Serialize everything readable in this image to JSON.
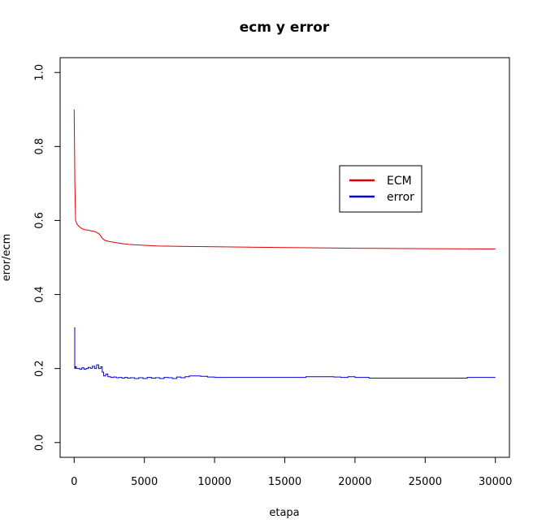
{
  "chart_data": {
    "type": "line",
    "title": "ecm y error",
    "xlabel": "etapa",
    "ylabel": "eror/ecm",
    "xlim": [
      -1000,
      31000
    ],
    "ylim": [
      -0.04,
      1.04
    ],
    "x_ticks": [
      {
        "value": 0,
        "label": "0"
      },
      {
        "value": 5000,
        "label": "5000"
      },
      {
        "value": 10000,
        "label": "10000"
      },
      {
        "value": 15000,
        "label": "15000"
      },
      {
        "value": 20000,
        "label": "20000"
      },
      {
        "value": 25000,
        "label": "25000"
      },
      {
        "value": 30000,
        "label": "30000"
      }
    ],
    "y_ticks": [
      {
        "value": 0.0,
        "label": "0.0"
      },
      {
        "value": 0.2,
        "label": "0.2"
      },
      {
        "value": 0.4,
        "label": "0.4"
      },
      {
        "value": 0.6,
        "label": "0.6"
      },
      {
        "value": 0.8,
        "label": "0.8"
      },
      {
        "value": 1.0,
        "label": "1.0"
      }
    ],
    "grid": false,
    "legend_position": "top-right",
    "series": [
      {
        "name": "ECM",
        "color": "#e00000",
        "x": [
          0,
          50,
          100,
          200,
          400,
          600,
          800,
          1000,
          1200,
          1400,
          1600,
          1800,
          2000,
          2200,
          2500,
          3000,
          3500,
          4000,
          5000,
          6000,
          8000,
          10000,
          15000,
          20000,
          25000,
          30000
        ],
        "y": [
          0.9,
          0.7,
          0.6,
          0.59,
          0.582,
          0.577,
          0.575,
          0.574,
          0.572,
          0.571,
          0.568,
          0.563,
          0.552,
          0.546,
          0.543,
          0.54,
          0.537,
          0.535,
          0.533,
          0.531,
          0.53,
          0.529,
          0.527,
          0.525,
          0.524,
          0.523
        ]
      },
      {
        "name": "error",
        "color": "#0000e0",
        "x": [
          0,
          40,
          80,
          150,
          250,
          400,
          550,
          700,
          850,
          1000,
          1150,
          1300,
          1450,
          1600,
          1750,
          1900,
          2000,
          2100,
          2250,
          2400,
          2600,
          2800,
          3000,
          3200,
          3400,
          3600,
          3800,
          4000,
          4300,
          4600,
          4900,
          5200,
          5500,
          5800,
          6100,
          6400,
          6700,
          7000,
          7300,
          7600,
          7900,
          8200,
          8600,
          9000,
          9500,
          10000,
          12000,
          14000,
          16000,
          16500,
          18000,
          18500,
          19000,
          19500,
          20000,
          21000,
          23000,
          25000,
          27000,
          28000,
          30000
        ],
        "y": [
          0.31,
          0.2,
          0.205,
          0.2,
          0.2,
          0.198,
          0.202,
          0.198,
          0.2,
          0.203,
          0.201,
          0.206,
          0.2,
          0.21,
          0.2,
          0.205,
          0.19,
          0.18,
          0.185,
          0.178,
          0.176,
          0.177,
          0.175,
          0.176,
          0.174,
          0.176,
          0.174,
          0.175,
          0.173,
          0.175,
          0.173,
          0.176,
          0.174,
          0.175,
          0.173,
          0.176,
          0.175,
          0.173,
          0.177,
          0.175,
          0.178,
          0.18,
          0.18,
          0.179,
          0.177,
          0.176,
          0.176,
          0.176,
          0.176,
          0.178,
          0.178,
          0.177,
          0.176,
          0.178,
          0.176,
          0.174,
          0.174,
          0.174,
          0.174,
          0.176,
          0.176
        ]
      }
    ]
  }
}
